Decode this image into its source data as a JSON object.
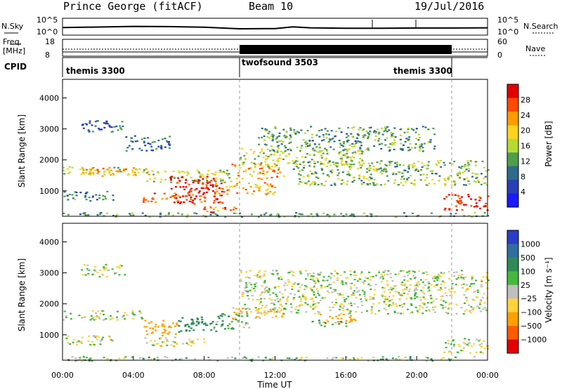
{
  "header": {
    "title": "Prince George (fitACF)",
    "beam": "Beam 10",
    "date": "19/Jul/2016"
  },
  "noise_panel": {
    "left_label": "N.Sky",
    "right_label": "N.Search",
    "left_ticks": [
      "10^5",
      "10^0"
    ],
    "right_ticks": [
      "10^5",
      "10^0"
    ]
  },
  "freq_panel": {
    "left_label_1": "Freq.",
    "left_label_2": "[MHz]",
    "left_ticks": [
      "18",
      "8"
    ],
    "right_ticks": [
      "60",
      "0"
    ],
    "right_label": "Nave"
  },
  "cpid_panel": {
    "label": "CPID",
    "segments": [
      {
        "name": "themis 3300",
        "start": 0,
        "end": 10
      },
      {
        "name": "twofsound 3503",
        "start": 10,
        "end": 22
      },
      {
        "name": "themis 3300",
        "start": 22,
        "end": 24
      }
    ]
  },
  "power_colorbar": {
    "label": "Power [dB]",
    "ticks": [
      "28",
      "24",
      "20",
      "16",
      "12",
      "8",
      "4"
    ],
    "colors": [
      "#e40000",
      "#ff4a00",
      "#ff9a00",
      "#ffd21c",
      "#b6d934",
      "#4e9e4c",
      "#2e6b8a",
      "#2840b4",
      "#1a1aff"
    ]
  },
  "velocity_colorbar": {
    "label": "Velocity [m s⁻¹]",
    "ticks": [
      "1000",
      "500",
      "100",
      "25",
      "−25",
      "−100",
      "−500",
      "−1000"
    ],
    "colors": [
      "#2a3cc8",
      "#2f6f9f",
      "#2e8b57",
      "#44b83c",
      "#bfbfbf",
      "#ffd23c",
      "#ffa000",
      "#ff5a00",
      "#e20000"
    ]
  },
  "chart_data": [
    {
      "type": "line",
      "name": "N.Sky / N.Search noise",
      "x": [
        0,
        2,
        4,
        6,
        8,
        10,
        12,
        13,
        14,
        16,
        18,
        20,
        22,
        24
      ],
      "values": [
        0.62,
        0.68,
        0.74,
        0.72,
        0.66,
        0.5,
        0.52,
        0.7,
        0.6,
        0.55,
        0.56,
        0.58,
        0.58,
        0.6
      ],
      "xlim": [
        0,
        24
      ]
    },
    {
      "type": "heatmap",
      "name": "Power",
      "ylabel": "Slant Range [km]",
      "yticks": [
        1000,
        2000,
        3000,
        4000
      ],
      "ylim": [
        180,
        4600
      ],
      "xlim": [
        0,
        24
      ],
      "zlabel": "Power [dB]",
      "regions": [
        {
          "t0": 0.0,
          "t1": 4.5,
          "r0": 1500,
          "r1": 1800,
          "p": 16
        },
        {
          "t0": 1.0,
          "t1": 5.0,
          "r0": 1550,
          "r1": 1750,
          "p": 20
        },
        {
          "t0": 4.5,
          "t1": 9.5,
          "r0": 1300,
          "r1": 1700,
          "p": 14
        },
        {
          "t0": 6.0,
          "t1": 9.0,
          "r0": 600,
          "r1": 1500,
          "p": 28
        },
        {
          "t0": 4.5,
          "t1": 8.0,
          "r0": 650,
          "r1": 950,
          "p": 24
        },
        {
          "t0": 8.5,
          "t1": 12.0,
          "r0": 900,
          "r1": 1300,
          "p": 20
        },
        {
          "t0": 9.5,
          "t1": 12.5,
          "r0": 1400,
          "r1": 1900,
          "p": 20
        },
        {
          "t0": 10.0,
          "t1": 17.0,
          "r0": 1800,
          "r1": 2400,
          "p": 14
        },
        {
          "t0": 11.0,
          "t1": 21.0,
          "r0": 2300,
          "r1": 3100,
          "p": 10
        },
        {
          "t0": 13.0,
          "t1": 24.0,
          "r0": 1200,
          "r1": 2000,
          "p": 12
        },
        {
          "t0": 1.0,
          "t1": 3.5,
          "r0": 2900,
          "r1": 3300,
          "p": 6
        },
        {
          "t0": 0.0,
          "t1": 3.0,
          "r0": 700,
          "r1": 1000,
          "p": 8
        },
        {
          "t0": 7.5,
          "t1": 10.0,
          "r0": 300,
          "r1": 500,
          "p": 24
        },
        {
          "t0": 21.5,
          "t1": 24.0,
          "r0": 400,
          "r1": 900,
          "p": 26
        },
        {
          "t0": 0.0,
          "t1": 24.0,
          "r0": 180,
          "r1": 320,
          "p": 10
        },
        {
          "t0": 3.5,
          "t1": 6.0,
          "r0": 2300,
          "r1": 2800,
          "p": 6
        }
      ]
    },
    {
      "type": "heatmap",
      "name": "Velocity",
      "ylabel": "Slant Range [km]",
      "yticks": [
        1000,
        2000,
        3000,
        4000
      ],
      "ylim": [
        180,
        4600
      ],
      "xlim": [
        0,
        24
      ],
      "xlabel": "Time UT",
      "xticks": [
        "00:00",
        "04:00",
        "08:00",
        "12:00",
        "16:00",
        "20:00",
        "00:00"
      ],
      "zlabel": "Velocity [m s⁻¹]",
      "regions": [
        {
          "t0": 0.0,
          "t1": 4.5,
          "r0": 1500,
          "r1": 1800,
          "v": 0
        },
        {
          "t0": 4.5,
          "t1": 6.5,
          "r0": 1000,
          "r1": 1500,
          "v": -300
        },
        {
          "t0": 6.5,
          "t1": 9.0,
          "r0": 1100,
          "r1": 1600,
          "v": 200
        },
        {
          "t0": 8.5,
          "t1": 10.5,
          "r0": 1200,
          "r1": 1700,
          "v": 80
        },
        {
          "t0": 4.5,
          "t1": 8.0,
          "r0": 650,
          "r1": 950,
          "v": -50
        },
        {
          "t0": 9.5,
          "t1": 12.5,
          "r0": 1500,
          "r1": 1900,
          "v": -100
        },
        {
          "t0": 10.0,
          "t1": 24.0,
          "r0": 1700,
          "r1": 3100,
          "v": 0
        },
        {
          "t0": 14.5,
          "t1": 16.5,
          "r0": 1400,
          "r1": 1700,
          "v": -200
        },
        {
          "t0": 14.0,
          "t1": 16.0,
          "r0": 1300,
          "r1": 1500,
          "v": 60
        },
        {
          "t0": 1.0,
          "t1": 3.5,
          "r0": 2900,
          "r1": 3300,
          "v": 0
        },
        {
          "t0": 0.0,
          "t1": 3.0,
          "r0": 700,
          "r1": 1000,
          "v": 0
        },
        {
          "t0": 21.5,
          "t1": 24.0,
          "r0": 400,
          "r1": 900,
          "v": 0
        },
        {
          "t0": 0.0,
          "t1": 24.0,
          "r0": 180,
          "r1": 320,
          "v": 50
        }
      ]
    }
  ]
}
